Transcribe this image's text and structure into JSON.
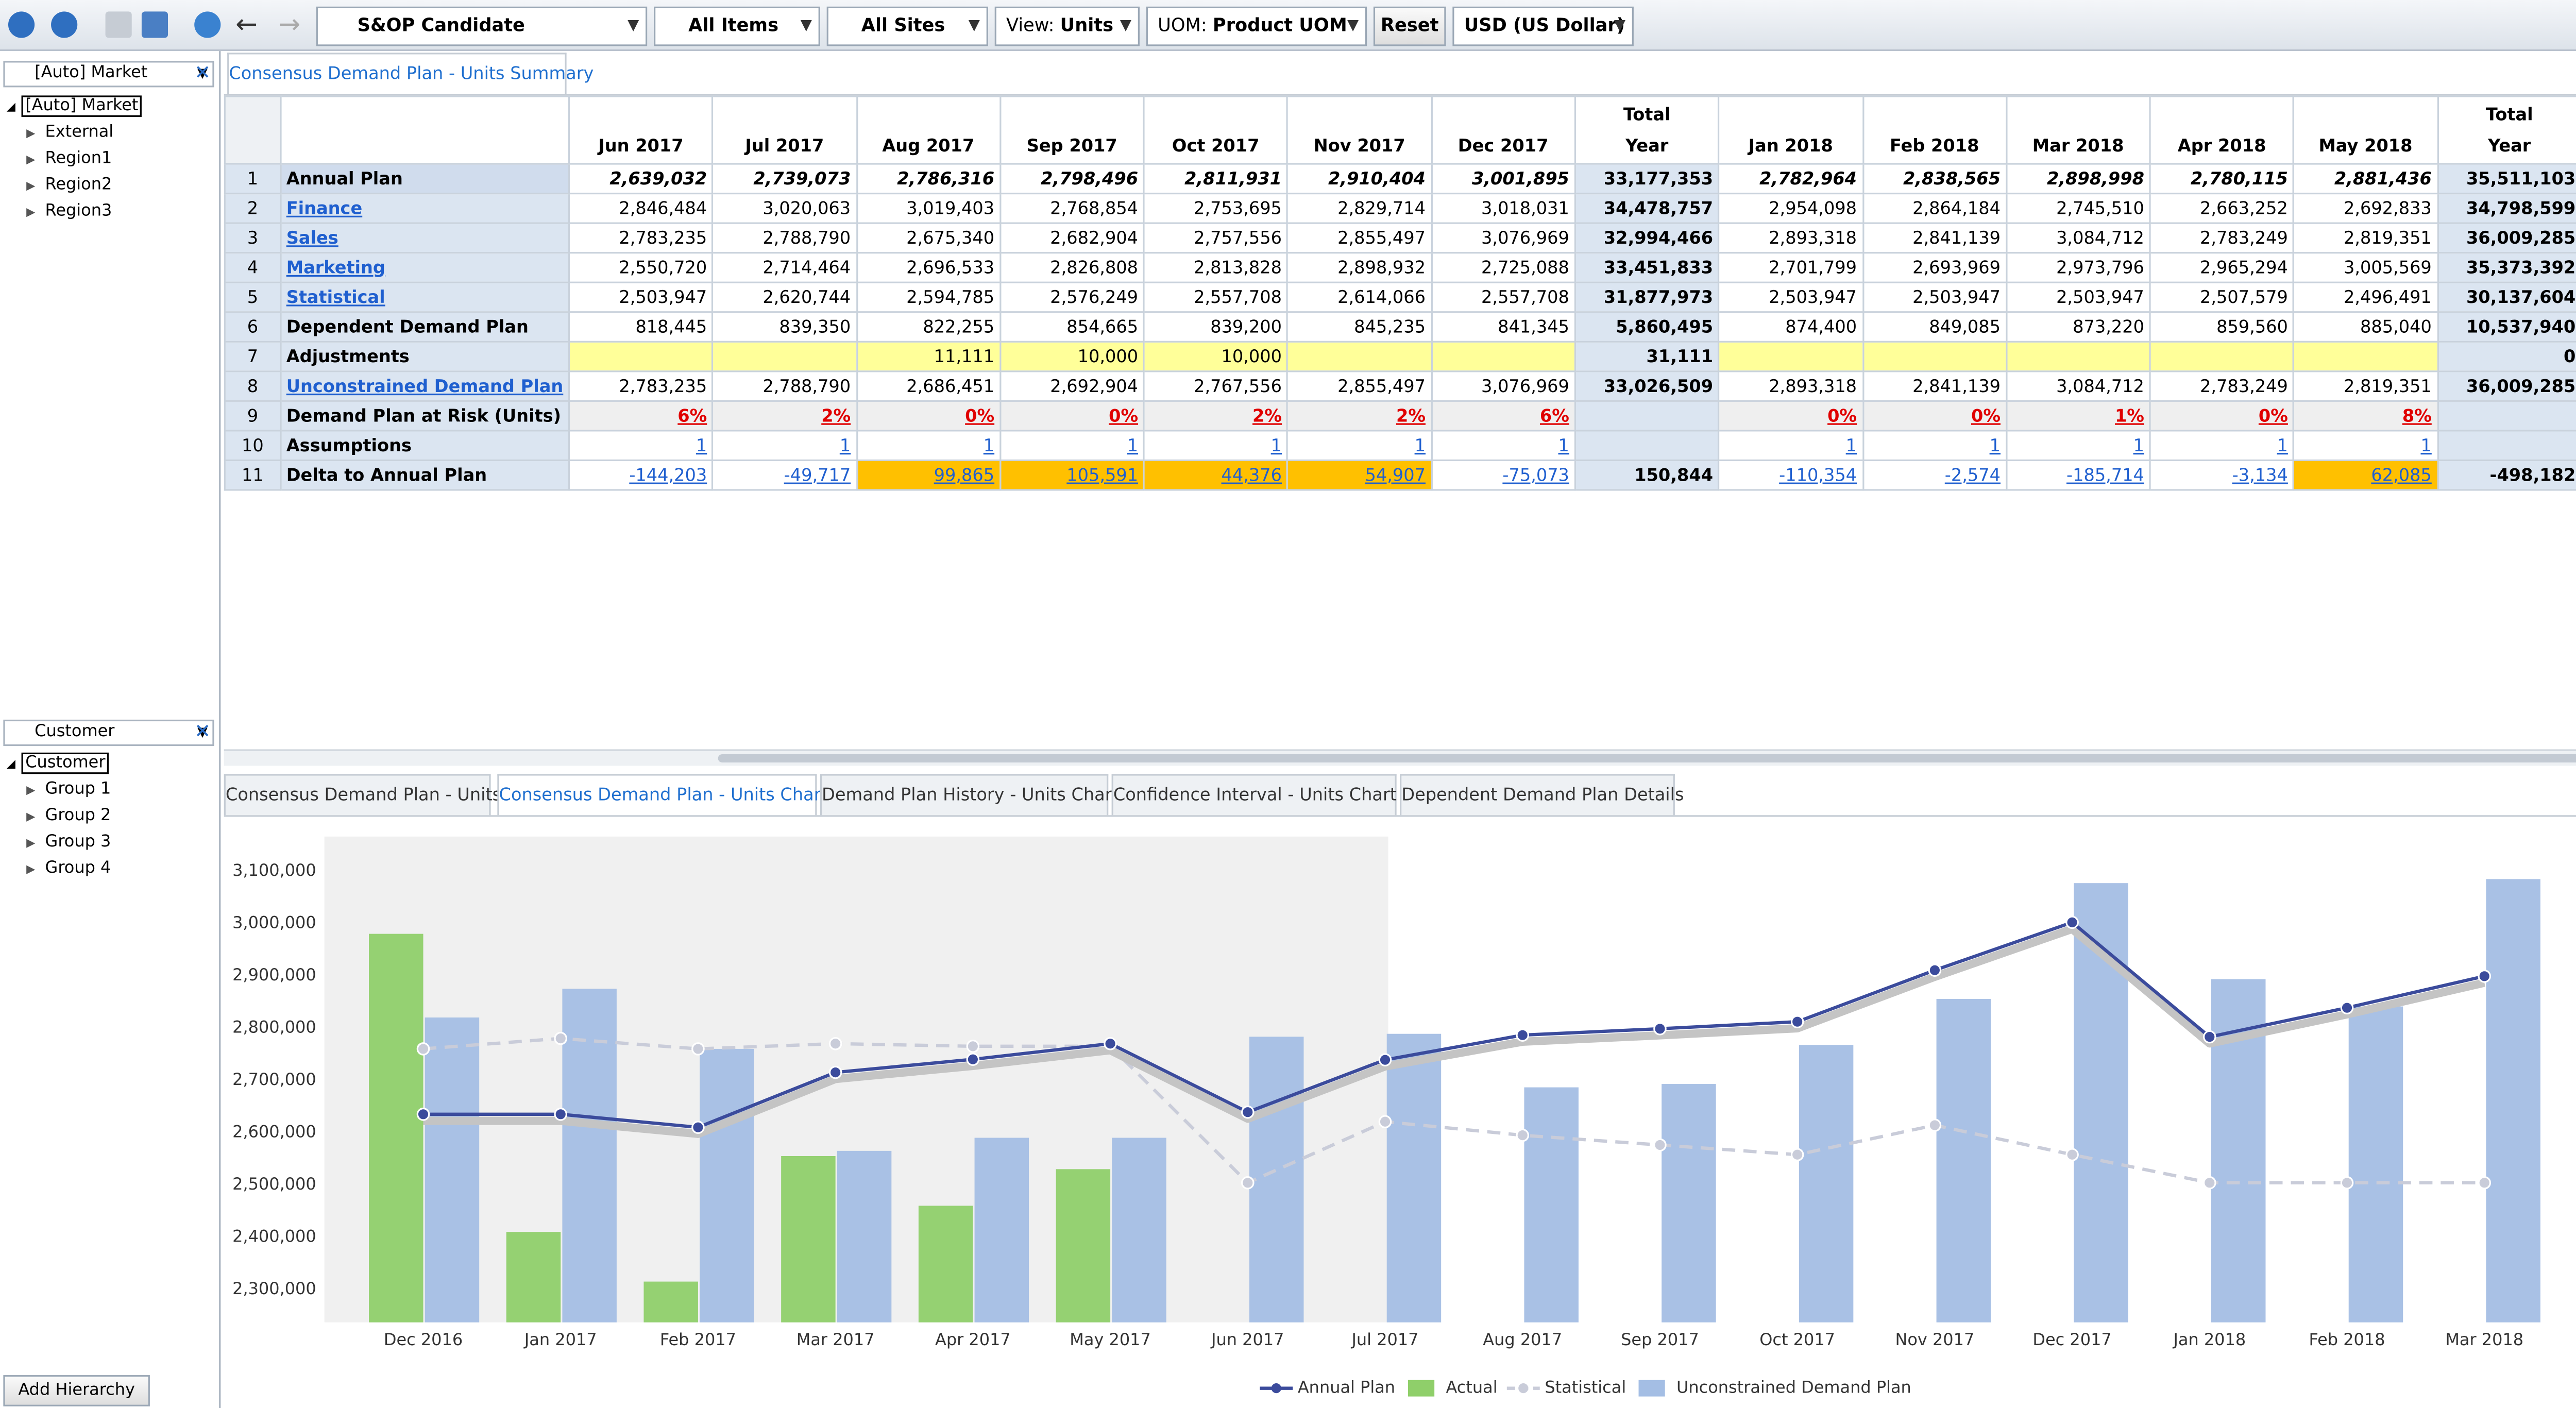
{
  "toolbar": {
    "scenario": "S&OP Candidate",
    "items": "All Items",
    "sites": "All Sites",
    "view_label": "View:",
    "view": "Units",
    "uom_label": "UOM:",
    "uom": "Product UOM",
    "reset": "Reset",
    "currency": "USD (US Dollar)"
  },
  "left_panel": {
    "hierarchy1": {
      "selector": "[Auto] Market",
      "root": "[Auto] Market",
      "children": [
        "External",
        "Region1",
        "Region2",
        "Region3"
      ]
    },
    "hierarchy2": {
      "selector": "Customer",
      "root": "Customer",
      "children": [
        "Group 1",
        "Group 2",
        "Group 3",
        "Group 4"
      ]
    },
    "add_button": "Add Hierarchy"
  },
  "top_tab": "Consensus Demand Plan - Units Summary",
  "table": {
    "columns": [
      "Jun 2017",
      "Jul 2017",
      "Aug 2017",
      "Sep 2017",
      "Oct 2017",
      "Nov 2017",
      "Dec 2017",
      "Total\nYear",
      "Jan 2018",
      "Feb 2018",
      "Mar 2018",
      "Apr 2018",
      "May 2018",
      "Total\nYear"
    ],
    "rows": [
      {
        "num": 1,
        "label": "Annual Plan",
        "cells": [
          "2,639,032",
          "2,739,073",
          "2,786,316",
          "2,798,496",
          "2,811,931",
          "2,910,404",
          "3,001,895",
          "33,177,353",
          "2,782,964",
          "2,838,565",
          "2,898,998",
          "2,780,115",
          "2,881,436",
          "35,511,103"
        ]
      },
      {
        "num": 2,
        "label": "Finance",
        "cells": [
          "2,846,484",
          "3,020,063",
          "3,019,403",
          "2,768,854",
          "2,753,695",
          "2,829,714",
          "3,018,031",
          "34,478,757",
          "2,954,098",
          "2,864,184",
          "2,745,510",
          "2,663,252",
          "2,692,833",
          "34,798,599"
        ]
      },
      {
        "num": 3,
        "label": "Sales",
        "cells": [
          "2,783,235",
          "2,788,790",
          "2,675,340",
          "2,682,904",
          "2,757,556",
          "2,855,497",
          "3,076,969",
          "32,994,466",
          "2,893,318",
          "2,841,139",
          "3,084,712",
          "2,783,249",
          "2,819,351",
          "36,009,285"
        ]
      },
      {
        "num": 4,
        "label": "Marketing",
        "cells": [
          "2,550,720",
          "2,714,464",
          "2,696,533",
          "2,826,808",
          "2,813,828",
          "2,898,932",
          "2,725,088",
          "33,451,833",
          "2,701,799",
          "2,693,969",
          "2,973,796",
          "2,965,294",
          "3,005,569",
          "35,373,392"
        ]
      },
      {
        "num": 5,
        "label": "Statistical",
        "cells": [
          "2,503,947",
          "2,620,744",
          "2,594,785",
          "2,576,249",
          "2,557,708",
          "2,614,066",
          "2,557,708",
          "31,877,973",
          "2,503,947",
          "2,503,947",
          "2,503,947",
          "2,507,579",
          "2,496,491",
          "30,137,604"
        ]
      },
      {
        "num": 6,
        "label": "Dependent Demand Plan",
        "cells": [
          "818,445",
          "839,350",
          "822,255",
          "854,665",
          "839,200",
          "845,235",
          "841,345",
          "5,860,495",
          "874,400",
          "849,085",
          "873,220",
          "859,560",
          "885,040",
          "10,537,940"
        ]
      },
      {
        "num": 7,
        "label": "Adjustments",
        "cells": [
          null,
          null,
          "11,111",
          "10,000",
          "10,000",
          null,
          null,
          "31,111",
          null,
          null,
          null,
          null,
          null,
          "0"
        ]
      },
      {
        "num": 8,
        "label": "Unconstrained Demand Plan",
        "cells": [
          "2,783,235",
          "2,788,790",
          "2,686,451",
          "2,692,904",
          "2,767,556",
          "2,855,497",
          "3,076,969",
          "33,026,509",
          "2,893,318",
          "2,841,139",
          "3,084,712",
          "2,783,249",
          "2,819,351",
          "36,009,285"
        ]
      },
      {
        "num": 9,
        "label": "Demand Plan at Risk (Units)",
        "cells": [
          "6%",
          "2%",
          "0%",
          "0%",
          "2%",
          "2%",
          "6%",
          null,
          "0%",
          "0%",
          "1%",
          "0%",
          "8%",
          null
        ]
      },
      {
        "num": 10,
        "label": "Assumptions",
        "cells": [
          "1",
          "1",
          "1",
          "1",
          "1",
          "1",
          "1",
          null,
          "1",
          "1",
          "1",
          "1",
          "1",
          null
        ]
      },
      {
        "num": 11,
        "label": "Delta to Annual Plan",
        "cells": [
          "-144,203",
          "-49,717",
          "99,865",
          "105,591",
          "44,376",
          "54,907",
          "-75,073",
          "150,844",
          "-110,354",
          "-2,574",
          "-185,714",
          "-3,134",
          "62,085",
          "-498,182"
        ]
      }
    ]
  },
  "bottom_tabs": [
    "Consensus Demand Plan - Units",
    "Consensus Demand Plan - Units Chart",
    "Demand Plan History - Units Chart",
    "Confidence Interval - Units Chart",
    "Dependent Demand Plan Details"
  ],
  "chart_data": {
    "type": "combo",
    "categories": [
      "Dec 2016",
      "Jan 2017",
      "Feb 2017",
      "Mar 2017",
      "Apr 2017",
      "May 2017",
      "Jun 2017",
      "Jul 2017",
      "Aug 2017",
      "Sep 2017",
      "Oct 2017",
      "Nov 2017",
      "Dec 2017",
      "Jan 2018",
      "Feb 2018",
      "Mar 2018"
    ],
    "ylim": [
      2237000,
      3166000
    ],
    "yticks": [
      {
        "value": 2300000,
        "label": "2,300,000"
      },
      {
        "value": 2400000,
        "label": "2,400,000"
      },
      {
        "value": 2500000,
        "label": "2,500,000"
      },
      {
        "value": 2600000,
        "label": "2,600,000"
      },
      {
        "value": 2700000,
        "label": "2,700,000"
      },
      {
        "value": 2800000,
        "label": "2,800,000"
      },
      {
        "value": 2900000,
        "label": "2,900,000"
      },
      {
        "value": 3000000,
        "label": "3,000,000"
      },
      {
        "value": 3100000,
        "label": "3,100,000"
      }
    ],
    "series": [
      {
        "name": "Annual Plan",
        "kind": "line",
        "color": "#3b4b9c",
        "values": [
          2635000,
          2635000,
          2610000,
          2715000,
          2740000,
          2770000,
          2639032,
          2739073,
          2786316,
          2798496,
          2811931,
          2910404,
          3001895,
          2782964,
          2838565,
          2898998
        ]
      },
      {
        "name": "Actual",
        "kind": "bar",
        "color": "#8fcf6a",
        "values": [
          2980000,
          2410000,
          2315000,
          2555000,
          2460000,
          2530000,
          null,
          null,
          null,
          null,
          null,
          null,
          null,
          null,
          null,
          null
        ]
      },
      {
        "name": "Statistical",
        "kind": "dashed",
        "color": "#c9ccd9",
        "values": [
          2760000,
          2780000,
          2760000,
          2770000,
          2765000,
          2765000,
          2503947,
          2620744,
          2594785,
          2576249,
          2557708,
          2614066,
          2557708,
          2503947,
          2503947,
          2503947
        ]
      },
      {
        "name": "Unconstrained Demand Plan",
        "kind": "bar",
        "color": "#a4bee4",
        "values": [
          2820000,
          2875000,
          2760000,
          2565000,
          2590000,
          2590000,
          2783235,
          2788790,
          2686451,
          2692904,
          2767556,
          2855497,
          3076969,
          2893318,
          2841139,
          3084712
        ]
      }
    ]
  }
}
